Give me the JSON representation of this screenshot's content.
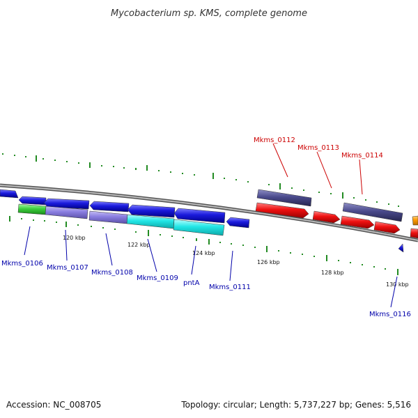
{
  "header": {
    "title": "Mycobacterium sp. KMS, complete genome"
  },
  "footer": {
    "accession": "Accession: NC_008705",
    "summary": "Topology: circular; Length: 5,737,227 bp; Genes: 5,516"
  },
  "scale_labels": [
    "120 kbp",
    "122 kbp",
    "124 kbp",
    "126 kbp",
    "128 kbp",
    "130 kbp"
  ],
  "gene_labels": {
    "forward": [
      "Mkms_0112",
      "Mkms_0113",
      "Mkms_0114"
    ],
    "reverse": [
      "Mkms_0106",
      "Mkms_0107",
      "Mkms_0108",
      "Mkms_0109",
      "pntA",
      "Mkms_0111",
      "Mkms_0116"
    ]
  },
  "colors": {
    "forward_label": "#cc0000",
    "reverse_label": "#0000aa",
    "tick": "#228b22",
    "backbone": "#888888",
    "cds_blue": "#1a1adc",
    "cds_red": "#ee1111",
    "cds_slate": "#4a4a8c",
    "cds_green": "#3ccf3c",
    "cds_lavender": "#8a7ee0",
    "cds_cyan": "#22e6e6",
    "cds_orange": "#ff9900"
  }
}
